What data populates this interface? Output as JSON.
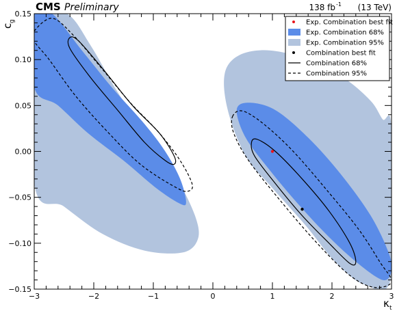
{
  "header": {
    "experiment": "CMS",
    "status": "Preliminary",
    "lumi": "138 fb",
    "lumi_exp": "-1",
    "energy": "(13 TeV)"
  },
  "chart_data": {
    "type": "scatter",
    "title": "",
    "xlabel": "κ",
    "xlabel_sub": "t",
    "ylabel": "c",
    "ylabel_sub": "g",
    "xlim": [
      -3,
      3
    ],
    "ylim": [
      -0.15,
      0.15
    ],
    "x_ticks": [
      -3,
      -2,
      -1,
      0,
      1,
      2,
      3
    ],
    "x_tick_labels": [
      "−3",
      "−2",
      "−1",
      "0",
      "1",
      "2",
      "3"
    ],
    "y_ticks": [
      -0.15,
      -0.1,
      -0.05,
      0.0,
      0.05,
      0.1,
      0.15
    ],
    "y_tick_labels": [
      "−0.15",
      "−0.10",
      "−0.05",
      "0.00",
      "0.05",
      "0.10",
      "0.15"
    ],
    "grid": false,
    "legend_position": "top-right",
    "legend": [
      {
        "label": "Exp. Combination best fit",
        "kind": "point",
        "color": "#e8141b"
      },
      {
        "label": "Exp. Combination 68%",
        "kind": "fill",
        "color": "#5b8ce8"
      },
      {
        "label": "Exp. Combination 95%",
        "kind": "fill",
        "color": "#b2c4de"
      },
      {
        "label": "Combination best fit",
        "kind": "point",
        "color": "#000000"
      },
      {
        "label": "Combination 68%",
        "kind": "solid",
        "color": "#000000"
      },
      {
        "label": "Combination 95%",
        "kind": "dashed",
        "color": "#000000"
      }
    ],
    "best_fits": [
      {
        "name": "Exp. Combination best fit",
        "x": 1.0,
        "y": 0.0,
        "color": "#e8141b"
      },
      {
        "name": "Combination best fit",
        "x": 1.5,
        "y": -0.063,
        "color": "#000000"
      }
    ],
    "regions": [
      {
        "name": "Exp. Combination 95%",
        "kind": "fill",
        "color": "#b2c4de",
        "points": [
          [
            -3.0,
            0.15
          ],
          [
            -2.45,
            0.15
          ],
          [
            -2.05,
            0.115
          ],
          [
            -1.65,
            0.07
          ],
          [
            -1.25,
            0.03
          ],
          [
            -0.95,
            0.0
          ],
          [
            -0.6,
            -0.03
          ],
          [
            -0.3,
            -0.07
          ],
          [
            -0.25,
            -0.095
          ],
          [
            -0.5,
            -0.11
          ],
          [
            -1.15,
            -0.108
          ],
          [
            -1.85,
            -0.09
          ],
          [
            -2.5,
            -0.06
          ],
          [
            -3.0,
            -0.035
          ]
        ]
      },
      {
        "name": "Exp. Combination 95%",
        "kind": "fill",
        "color": "#b2c4de",
        "points": [
          [
            0.2,
            0.085
          ],
          [
            0.45,
            0.105
          ],
          [
            0.95,
            0.11
          ],
          [
            1.6,
            0.1
          ],
          [
            2.2,
            0.08
          ],
          [
            2.65,
            0.055
          ],
          [
            2.85,
            0.035
          ],
          [
            3.0,
            0.025
          ],
          [
            3.0,
            -0.135
          ],
          [
            2.55,
            -0.145
          ],
          [
            2.05,
            -0.12
          ],
          [
            1.55,
            -0.08
          ],
          [
            1.0,
            -0.04
          ],
          [
            0.55,
            -0.005
          ],
          [
            0.25,
            0.045
          ]
        ]
      },
      {
        "name": "Exp. Combination 68%",
        "kind": "fill",
        "color": "#5b8ce8",
        "points": [
          [
            -3.0,
            0.15
          ],
          [
            -2.7,
            0.15
          ],
          [
            -2.2,
            0.11
          ],
          [
            -1.7,
            0.07
          ],
          [
            -1.15,
            0.03
          ],
          [
            -0.8,
            0.0
          ],
          [
            -0.55,
            -0.03
          ],
          [
            -0.45,
            -0.055
          ],
          [
            -0.55,
            -0.057
          ],
          [
            -0.95,
            -0.04
          ],
          [
            -1.5,
            -0.01
          ],
          [
            -2.1,
            0.02
          ],
          [
            -2.6,
            0.05
          ],
          [
            -3.0,
            0.07
          ]
        ]
      },
      {
        "name": "Exp. Combination 68%",
        "kind": "fill",
        "color": "#5b8ce8",
        "points": [
          [
            0.4,
            0.045
          ],
          [
            0.6,
            0.053
          ],
          [
            1.05,
            0.045
          ],
          [
            1.6,
            0.015
          ],
          [
            2.15,
            -0.025
          ],
          [
            2.65,
            -0.07
          ],
          [
            2.95,
            -0.11
          ],
          [
            3.0,
            -0.13
          ],
          [
            2.85,
            -0.14
          ],
          [
            2.4,
            -0.12
          ],
          [
            1.9,
            -0.09
          ],
          [
            1.4,
            -0.055
          ],
          [
            0.95,
            -0.02
          ],
          [
            0.55,
            0.015
          ]
        ]
      },
      {
        "name": "Combination 95%",
        "kind": "dashed",
        "color": "#000000",
        "points": [
          [
            -3.0,
            0.131
          ],
          [
            -2.7,
            0.145
          ],
          [
            -2.35,
            0.127
          ],
          [
            -1.9,
            0.093
          ],
          [
            -1.4,
            0.054
          ],
          [
            -0.9,
            0.02
          ],
          [
            -0.55,
            -0.01
          ],
          [
            -0.35,
            -0.035
          ],
          [
            -0.4,
            -0.043
          ],
          [
            -0.6,
            -0.04
          ],
          [
            -1.2,
            -0.015
          ],
          [
            -1.75,
            0.02
          ],
          [
            -2.3,
            0.06
          ],
          [
            -2.75,
            0.1
          ],
          [
            -3.0,
            0.12
          ]
        ]
      },
      {
        "name": "Combination 95%",
        "kind": "dashed",
        "color": "#000000",
        "points": [
          [
            0.33,
            0.038
          ],
          [
            0.5,
            0.044
          ],
          [
            0.85,
            0.03
          ],
          [
            1.35,
            0.0
          ],
          [
            1.95,
            -0.045
          ],
          [
            2.45,
            -0.085
          ],
          [
            2.8,
            -0.12
          ],
          [
            3.0,
            -0.142
          ],
          [
            2.7,
            -0.148
          ],
          [
            2.3,
            -0.135
          ],
          [
            1.75,
            -0.1
          ],
          [
            1.15,
            -0.055
          ],
          [
            0.6,
            -0.01
          ],
          [
            0.35,
            0.02
          ]
        ]
      },
      {
        "name": "Combination 68%",
        "kind": "solid",
        "color": "#000000",
        "points": [
          [
            -2.4,
            0.124
          ],
          [
            -2.25,
            0.12
          ],
          [
            -1.85,
            0.09
          ],
          [
            -1.35,
            0.05
          ],
          [
            -0.9,
            0.02
          ],
          [
            -0.65,
            -0.005
          ],
          [
            -0.65,
            -0.014
          ],
          [
            -0.8,
            -0.01
          ],
          [
            -1.15,
            0.01
          ],
          [
            -1.6,
            0.045
          ],
          [
            -2.05,
            0.08
          ],
          [
            -2.4,
            0.112
          ]
        ]
      },
      {
        "name": "Combination 68%",
        "kind": "solid",
        "color": "#000000",
        "points": [
          [
            0.65,
            0.01
          ],
          [
            0.75,
            0.013
          ],
          [
            1.05,
            0.0
          ],
          [
            1.5,
            -0.03
          ],
          [
            1.95,
            -0.065
          ],
          [
            2.3,
            -0.1
          ],
          [
            2.4,
            -0.12
          ],
          [
            2.3,
            -0.122
          ],
          [
            1.95,
            -0.1
          ],
          [
            1.5,
            -0.07
          ],
          [
            1.05,
            -0.035
          ],
          [
            0.7,
            -0.005
          ]
        ]
      }
    ]
  }
}
